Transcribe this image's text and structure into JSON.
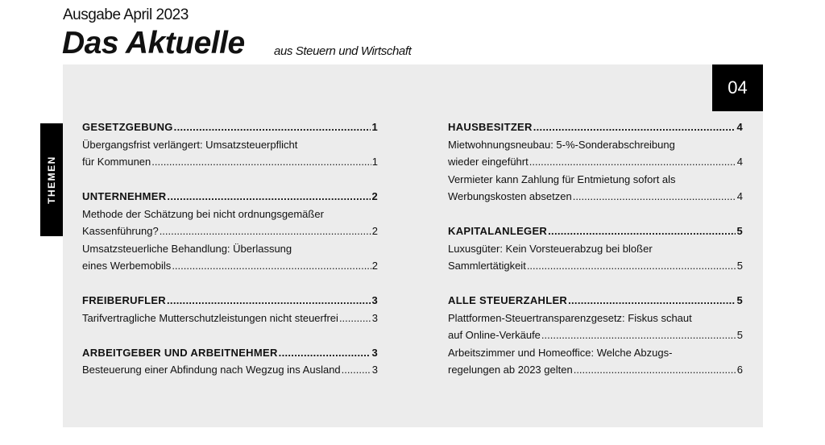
{
  "header": {
    "edition": "Ausgabe April 2023",
    "title": "Das Aktuelle",
    "subtitle": "aus Steuern und Wirtschaft",
    "issue_number": "04",
    "side_tab": "THEMEN"
  },
  "columns": [
    [
      {
        "title": "GESETZGEBUNG",
        "page": "1",
        "articles": [
          {
            "lines": [
              "Übergangsfrist verlängert: Umsatzsteuerpflicht",
              "für Kommunen "
            ],
            "page": "1"
          }
        ]
      },
      {
        "title": "UNTERNEHMER",
        "page": "2",
        "articles": [
          {
            "lines": [
              "Methode der Schätzung bei nicht ordnungsgemäßer",
              "Kassenführung?"
            ],
            "page": "2"
          },
          {
            "lines": [
              "Umsatzsteuerliche Behandlung: Überlassung",
              "eines Werbemobils"
            ],
            "page": "2"
          }
        ]
      },
      {
        "title": "FREIBERUFLER",
        "page": "3",
        "articles": [
          {
            "lines": [
              "Tarifvertragliche Mutterschutzleistungen nicht steuerfrei"
            ],
            "page": "3"
          }
        ]
      },
      {
        "title": "ARBEITGEBER UND ARBEITNEHMER",
        "page": "3",
        "articles": [
          {
            "lines": [
              "Besteuerung einer Abfindung nach Wegzug ins Ausland"
            ],
            "page": "3"
          }
        ]
      }
    ],
    [
      {
        "title": "HAUSBESITZER",
        "page": "4",
        "articles": [
          {
            "lines": [
              "Mietwohnungsneubau: 5-%-Sonderabschreibung",
              "wieder eingeführt"
            ],
            "page": "4"
          },
          {
            "lines": [
              "Vermieter kann Zahlung für Entmietung sofort als",
              "Werbungskosten absetzen"
            ],
            "page": "4"
          }
        ]
      },
      {
        "title": "KAPITALANLEGER",
        "page": "5",
        "articles": [
          {
            "lines": [
              "Luxusgüter: Kein Vorsteuerabzug bei bloßer",
              "Sammlertätigkeit"
            ],
            "page": "5"
          }
        ]
      },
      {
        "title": "ALLE STEUERZAHLER",
        "page": "5",
        "articles": [
          {
            "lines": [
              "Plattformen-Steuertransparenzgesetz: Fiskus schaut",
              "auf Online-Verkäufe"
            ],
            "page": "5"
          },
          {
            "lines": [
              "Arbeitszimmer und Homeoffice: Welche Abzugs-",
              "regelungen ab 2023 gelten"
            ],
            "page": "6"
          }
        ]
      }
    ]
  ]
}
